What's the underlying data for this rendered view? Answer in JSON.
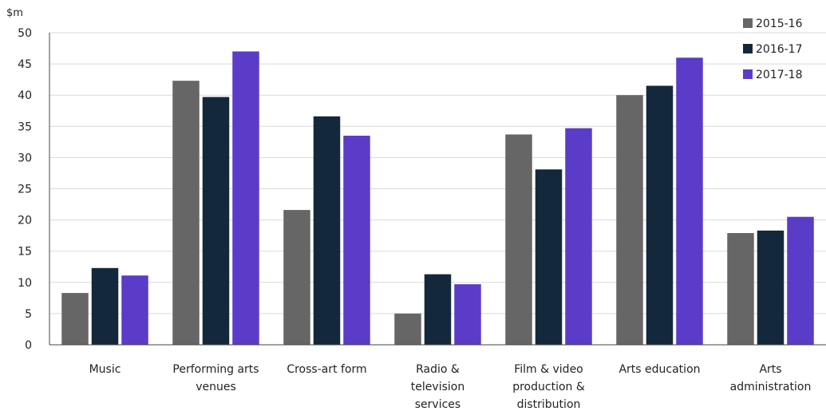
{
  "chart_data": {
    "type": "bar",
    "unit_label": "$m",
    "ylim": [
      0,
      50
    ],
    "yticks": [
      0,
      5,
      10,
      15,
      20,
      25,
      30,
      35,
      40,
      45,
      50
    ],
    "grid": true,
    "legend_position": "top-right",
    "categories": [
      [
        "Music"
      ],
      [
        "Performing arts",
        "venues"
      ],
      [
        "Cross-art form"
      ],
      [
        "Radio &",
        "television",
        "services"
      ],
      [
        "Film & video",
        "production &",
        "distribution"
      ],
      [
        "Arts education"
      ],
      [
        "Arts",
        "administration"
      ]
    ],
    "series": [
      {
        "name": "2015-16",
        "color": "#666666",
        "values": [
          8.3,
          42.3,
          21.6,
          5.0,
          33.7,
          40.0,
          17.9
        ]
      },
      {
        "name": "2016-17",
        "color": "#13293b",
        "values": [
          12.3,
          39.7,
          36.6,
          11.3,
          28.1,
          41.5,
          18.3
        ]
      },
      {
        "name": "2017-18",
        "color": "#5b3cc8",
        "values": [
          11.1,
          47.0,
          33.5,
          9.7,
          34.7,
          46.0,
          20.5
        ]
      }
    ]
  }
}
